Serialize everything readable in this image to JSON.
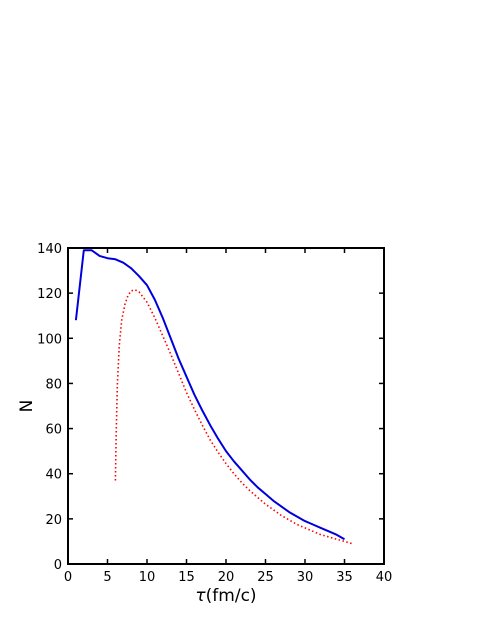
{
  "chart_data": {
    "type": "line",
    "title": "",
    "xlabel_symbol": "τ",
    "xlabel_unit": "(fm/c)",
    "ylabel": "N",
    "xlim": [
      0,
      40
    ],
    "ylim": [
      0,
      140
    ],
    "x_ticks": [
      0,
      5,
      10,
      15,
      20,
      25,
      30,
      35,
      40
    ],
    "y_ticks": [
      0,
      20,
      40,
      60,
      80,
      100,
      120,
      140
    ],
    "grid": false,
    "legend": "none",
    "series": [
      {
        "color": "#0000dd",
        "style": "solid",
        "points": [
          [
            1.0,
            108
          ],
          [
            2.0,
            139
          ],
          [
            3.0,
            139
          ],
          [
            4.0,
            136.5
          ],
          [
            5.0,
            135.5
          ],
          [
            6.0,
            135
          ],
          [
            7.0,
            133.5
          ],
          [
            8.0,
            131
          ],
          [
            9.0,
            127.5
          ],
          [
            10.0,
            123.5
          ],
          [
            11.0,
            117
          ],
          [
            12.0,
            109
          ],
          [
            13.0,
            100
          ],
          [
            14.0,
            91
          ],
          [
            15.0,
            83
          ],
          [
            16.0,
            75
          ],
          [
            17.0,
            68
          ],
          [
            18.0,
            61.5
          ],
          [
            19.0,
            55.5
          ],
          [
            20.0,
            50
          ],
          [
            21.0,
            45.5
          ],
          [
            22.0,
            41.5
          ],
          [
            23.0,
            37.5
          ],
          [
            24.0,
            34
          ],
          [
            25.0,
            31
          ],
          [
            26.0,
            28
          ],
          [
            27.0,
            25.5
          ],
          [
            28.0,
            23
          ],
          [
            29.0,
            21
          ],
          [
            30.0,
            19
          ],
          [
            31.0,
            17.5
          ],
          [
            32.0,
            16
          ],
          [
            33.0,
            14.5
          ],
          [
            34.0,
            13
          ],
          [
            35.0,
            11
          ]
        ]
      },
      {
        "color": "#ff0000",
        "style": "dotted",
        "points": [
          [
            6.0,
            37
          ],
          [
            6.1,
            58
          ],
          [
            6.25,
            80
          ],
          [
            6.5,
            97
          ],
          [
            6.8,
            108
          ],
          [
            7.2,
            115
          ],
          [
            7.6,
            119
          ],
          [
            8.0,
            121
          ],
          [
            8.5,
            121.5
          ],
          [
            9.0,
            120.5
          ],
          [
            10.0,
            116
          ],
          [
            11.0,
            109
          ],
          [
            12.0,
            101
          ],
          [
            13.0,
            93
          ],
          [
            14.0,
            84.5
          ],
          [
            15.0,
            76
          ],
          [
            16.0,
            68.5
          ],
          [
            17.0,
            61.5
          ],
          [
            18.0,
            55
          ],
          [
            19.0,
            49.5
          ],
          [
            20.0,
            44.5
          ],
          [
            21.0,
            40
          ],
          [
            22.0,
            36
          ],
          [
            23.0,
            32.5
          ],
          [
            24.0,
            29.5
          ],
          [
            25.0,
            26.5
          ],
          [
            26.0,
            24
          ],
          [
            27.0,
            21.5
          ],
          [
            28.0,
            19.5
          ],
          [
            29.0,
            17.5
          ],
          [
            30.0,
            16
          ],
          [
            31.0,
            14.5
          ],
          [
            32.0,
            13
          ],
          [
            33.0,
            12
          ],
          [
            34.0,
            11
          ],
          [
            35.0,
            10
          ],
          [
            36.0,
            9
          ]
        ]
      }
    ]
  }
}
